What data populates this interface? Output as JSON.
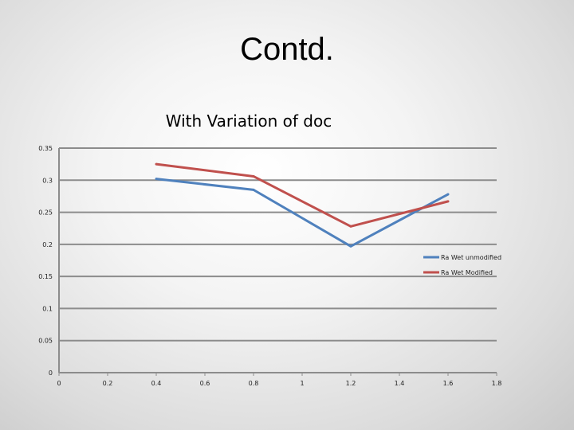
{
  "slide": {
    "title": "Contd."
  },
  "chart_data": {
    "type": "line",
    "title": "With Variation of doc",
    "xlabel": "",
    "ylabel": "",
    "xlim": [
      0,
      1.8
    ],
    "ylim": [
      0,
      0.35
    ],
    "xticks": [
      "0",
      "0.2",
      "0.4",
      "0.6",
      "0.8",
      "1",
      "1.2",
      "1.4",
      "1.6",
      "1.8"
    ],
    "yticks": [
      "0",
      "0.05",
      "0.1",
      "0.15",
      "0.2",
      "0.25",
      "0.3",
      "0.35"
    ],
    "grid": "horizontal",
    "legend_position": "right",
    "x": [
      0.4,
      0.8,
      1.2,
      1.6
    ],
    "series": [
      {
        "name": "Ra Wet unmodified",
        "color": "#4f81bd",
        "values": [
          0.302,
          0.285,
          0.197,
          0.278
        ]
      },
      {
        "name": "Ra Wet Modified",
        "color": "#c0504d",
        "values": [
          0.325,
          0.306,
          0.228,
          0.267
        ]
      }
    ]
  }
}
